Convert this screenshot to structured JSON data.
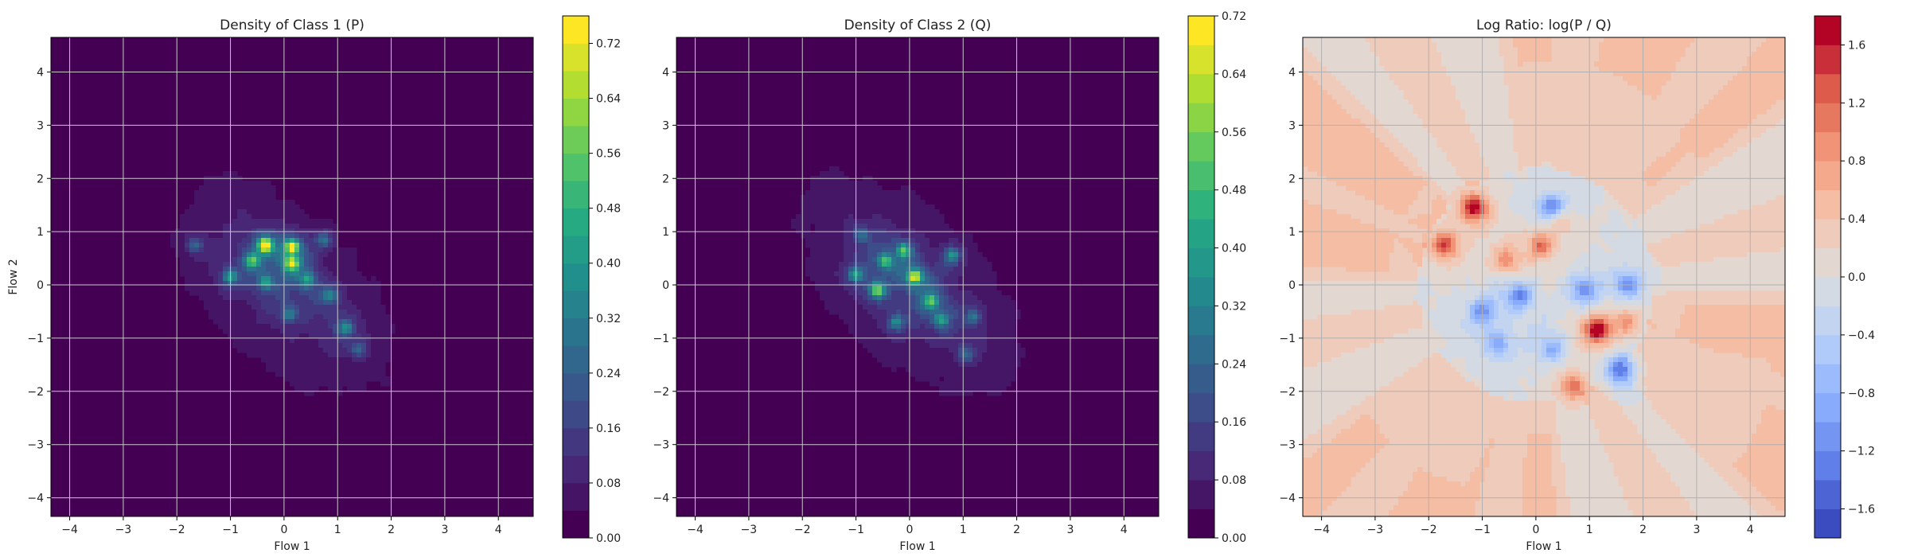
{
  "chart_data": [
    {
      "type": "heatmap",
      "title": "Density of Class 1 (P)",
      "xlabel": "Flow 1",
      "ylabel": "Flow 2",
      "xlim": [
        -4.35,
        4.65
      ],
      "ylim": [
        -4.35,
        4.65
      ],
      "x_ticks": [
        -4,
        -3,
        -2,
        -1,
        0,
        1,
        2,
        3,
        4
      ],
      "y_ticks": [
        -4,
        -3,
        -2,
        -1,
        0,
        1,
        2,
        3,
        4
      ],
      "grid": true,
      "colormap": "viridis",
      "levels": [
        0.0,
        0.04,
        0.08,
        0.12,
        0.16,
        0.2,
        0.24,
        0.28,
        0.32,
        0.36,
        0.4,
        0.44,
        0.48,
        0.52,
        0.56,
        0.6,
        0.64,
        0.68,
        0.72,
        0.76
      ],
      "colorbar": {
        "min": 0.0,
        "max": 0.76,
        "tick_values": [
          0.0,
          0.08,
          0.16,
          0.24,
          0.32,
          0.4,
          0.48,
          0.56,
          0.64,
          0.72
        ],
        "tick_labels": [
          "0.00",
          "0.08",
          "0.16",
          "0.24",
          "0.32",
          "0.40",
          "0.48",
          "0.56",
          "0.64",
          "0.72"
        ]
      },
      "peaks": [
        {
          "x": -0.35,
          "y": 0.75,
          "value": 0.68
        },
        {
          "x": 0.15,
          "y": 0.72,
          "value": 0.6
        },
        {
          "x": 0.15,
          "y": 0.4,
          "value": 0.52
        },
        {
          "x": -0.6,
          "y": 0.45,
          "value": 0.4
        },
        {
          "x": -1.0,
          "y": 0.15,
          "value": 0.34
        },
        {
          "x": -0.35,
          "y": 0.05,
          "value": 0.3
        },
        {
          "x": 0.45,
          "y": 0.1,
          "value": 0.3
        },
        {
          "x": 0.85,
          "y": -0.2,
          "value": 0.26
        },
        {
          "x": 1.15,
          "y": -0.8,
          "value": 0.28
        },
        {
          "x": 0.1,
          "y": -0.55,
          "value": 0.24
        },
        {
          "x": -1.65,
          "y": 0.75,
          "value": 0.2
        },
        {
          "x": 0.75,
          "y": 0.85,
          "value": 0.22
        },
        {
          "x": 1.4,
          "y": -1.2,
          "value": 0.18
        }
      ]
    },
    {
      "type": "heatmap",
      "title": "Density of Class 2 (Q)",
      "xlabel": "Flow 1",
      "ylabel": "",
      "xlim": [
        -4.35,
        4.65
      ],
      "ylim": [
        -4.35,
        4.65
      ],
      "x_ticks": [
        -4,
        -3,
        -2,
        -1,
        0,
        1,
        2,
        3,
        4
      ],
      "y_ticks": [
        -4,
        -3,
        -2,
        -1,
        0,
        1,
        2,
        3,
        4
      ],
      "grid": true,
      "colormap": "viridis",
      "levels": [
        0.0,
        0.04,
        0.08,
        0.12,
        0.16,
        0.2,
        0.24,
        0.28,
        0.32,
        0.36,
        0.4,
        0.44,
        0.48,
        0.52,
        0.56,
        0.6,
        0.64,
        0.68,
        0.72
      ],
      "colorbar": {
        "min": 0.0,
        "max": 0.72,
        "tick_values": [
          0.0,
          0.08,
          0.16,
          0.24,
          0.32,
          0.4,
          0.48,
          0.56,
          0.64,
          0.72
        ],
        "tick_labels": [
          "0.00",
          "0.08",
          "0.16",
          "0.24",
          "0.32",
          "0.40",
          "0.48",
          "0.56",
          "0.64",
          "0.72"
        ]
      },
      "peaks": [
        {
          "x": 0.1,
          "y": 0.15,
          "value": 0.56
        },
        {
          "x": -0.6,
          "y": -0.1,
          "value": 0.46
        },
        {
          "x": -0.1,
          "y": 0.65,
          "value": 0.36
        },
        {
          "x": -0.45,
          "y": 0.45,
          "value": 0.34
        },
        {
          "x": 0.4,
          "y": -0.3,
          "value": 0.36
        },
        {
          "x": -1.0,
          "y": 0.2,
          "value": 0.3
        },
        {
          "x": 0.8,
          "y": 0.55,
          "value": 0.3
        },
        {
          "x": 0.6,
          "y": -0.65,
          "value": 0.28
        },
        {
          "x": -0.25,
          "y": -0.7,
          "value": 0.26
        },
        {
          "x": 1.2,
          "y": -0.6,
          "value": 0.22
        },
        {
          "x": 1.05,
          "y": -1.3,
          "value": 0.18
        },
        {
          "x": -0.9,
          "y": 0.95,
          "value": 0.18
        }
      ]
    },
    {
      "type": "heatmap",
      "title": "Log Ratio: log(P / Q)",
      "xlabel": "Flow 1",
      "ylabel": "",
      "xlim": [
        -4.35,
        4.65
      ],
      "ylim": [
        -4.35,
        4.65
      ],
      "x_ticks": [
        -4,
        -3,
        -2,
        -1,
        0,
        1,
        2,
        3,
        4
      ],
      "y_ticks": [
        -4,
        -3,
        -2,
        -1,
        0,
        1,
        2,
        3,
        4
      ],
      "grid": true,
      "colormap": "coolwarm",
      "levels": [
        -1.8,
        -1.6,
        -1.4,
        -1.2,
        -1.0,
        -0.8,
        -0.6,
        -0.4,
        -0.2,
        0.0,
        0.2,
        0.4,
        0.6,
        0.8,
        1.0,
        1.2,
        1.4,
        1.6,
        1.8
      ],
      "colorbar": {
        "min": -1.8,
        "max": 1.8,
        "tick_values": [
          -1.6,
          -1.2,
          -0.8,
          -0.4,
          0.0,
          0.4,
          0.8,
          1.2,
          1.6
        ],
        "tick_labels": [
          "−1.6",
          "−1.2",
          "−0.8",
          "−0.4",
          "0.0",
          "0.4",
          "0.8",
          "1.2",
          "1.6"
        ]
      },
      "background_value": 0.28,
      "hotspots": [
        {
          "x": -1.15,
          "y": 1.45,
          "value": 1.35
        },
        {
          "x": -1.7,
          "y": 0.75,
          "value": 1.1
        },
        {
          "x": 1.15,
          "y": -0.85,
          "value": 1.4
        },
        {
          "x": 0.1,
          "y": 0.75,
          "value": 0.9
        },
        {
          "x": 0.7,
          "y": -1.9,
          "value": 0.9
        },
        {
          "x": -0.55,
          "y": 0.45,
          "value": 0.7
        },
        {
          "x": 1.7,
          "y": -0.7,
          "value": 0.6
        },
        {
          "x": 0.45,
          "y": 1.25,
          "value": 0.5
        },
        {
          "x": 0.3,
          "y": 1.45,
          "value": -1.1
        },
        {
          "x": 1.6,
          "y": -1.6,
          "value": -1.2
        },
        {
          "x": -1.0,
          "y": -0.5,
          "value": -0.8
        },
        {
          "x": -0.3,
          "y": -0.2,
          "value": -0.9
        },
        {
          "x": 0.9,
          "y": -0.1,
          "value": -0.8
        },
        {
          "x": 1.7,
          "y": 0.0,
          "value": -0.9
        },
        {
          "x": -0.7,
          "y": -1.1,
          "value": -0.7
        },
        {
          "x": 0.3,
          "y": -1.2,
          "value": -0.6
        }
      ]
    }
  ]
}
